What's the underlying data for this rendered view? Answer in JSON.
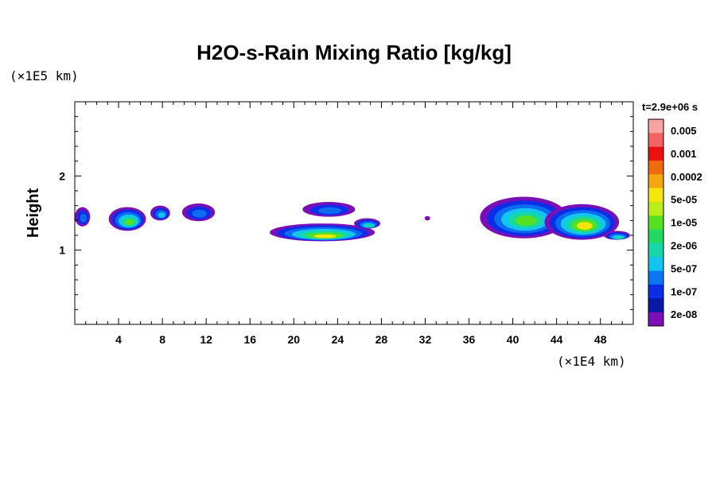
{
  "chart_data": {
    "type": "heatmap",
    "title": "H2O-s-Rain Mixing Ratio [kg/kg]",
    "ylabel": "Height",
    "y_unit": "(×1E5 km)",
    "x_unit": "(×1E4 km)",
    "time_label": "t=2.9e+06 s",
    "x_ticks": [
      "4",
      "8",
      "12",
      "16",
      "20",
      "24",
      "28",
      "32",
      "36",
      "40",
      "44",
      "48"
    ],
    "y_ticks": [
      "1",
      "2"
    ],
    "xlim": [
      0,
      51
    ],
    "ylim": [
      0,
      3
    ],
    "colorbar": {
      "labels": [
        "0.005",
        "0.001",
        "0.0002",
        "5e-05",
        "1e-05",
        "2e-06",
        "5e-07",
        "1e-07",
        "2e-08"
      ],
      "colors": [
        "#f7a3a3",
        "#f26464",
        "#ee1111",
        "#f06a10",
        "#f4a70f",
        "#f5e60d",
        "#b8ee1a",
        "#55e11f",
        "#23d865",
        "#16d7aa",
        "#12c4f0",
        "#0a76f2",
        "#0b2de8",
        "#0a18a8",
        "#7a0fb8"
      ]
    },
    "levels": [
      "2e-08",
      "1e-07",
      "5e-07",
      "2e-06",
      "1e-05",
      "5e-05",
      "0.0002"
    ],
    "level_colors": [
      "#7a0fb8",
      "#0a2ee8",
      "#0b6cf0",
      "#13c6f1",
      "#17d8a0",
      "#55e11f",
      "#f5e60d"
    ],
    "clouds": [
      {
        "x": 0.7,
        "y": 1.45,
        "rx": 0.7,
        "ry": 0.13,
        "peak": 2
      },
      {
        "x": 4.8,
        "y": 1.42,
        "rx": 1.7,
        "ry": 0.16,
        "peak": 5
      },
      {
        "x": 7.8,
        "y": 1.5,
        "rx": 0.9,
        "ry": 0.1,
        "peak": 3
      },
      {
        "x": 11.3,
        "y": 1.51,
        "rx": 1.5,
        "ry": 0.12,
        "peak": 2
      },
      {
        "x": 22.6,
        "y": 1.24,
        "rx": 4.8,
        "ry": 0.12,
        "peak": 6
      },
      {
        "x": 23.2,
        "y": 1.55,
        "rx": 2.4,
        "ry": 0.1,
        "peak": 2
      },
      {
        "x": 26.7,
        "y": 1.36,
        "rx": 1.2,
        "ry": 0.07,
        "peak": 4
      },
      {
        "x": 32.2,
        "y": 1.43,
        "rx": 0.25,
        "ry": 0.03,
        "peak": 0
      },
      {
        "x": 41.0,
        "y": 1.44,
        "rx": 4.0,
        "ry": 0.28,
        "peak": 5
      },
      {
        "x": 46.3,
        "y": 1.38,
        "rx": 3.4,
        "ry": 0.24,
        "peak": 6
      },
      {
        "x": 49.5,
        "y": 1.2,
        "rx": 1.2,
        "ry": 0.06,
        "peak": 4
      }
    ]
  }
}
